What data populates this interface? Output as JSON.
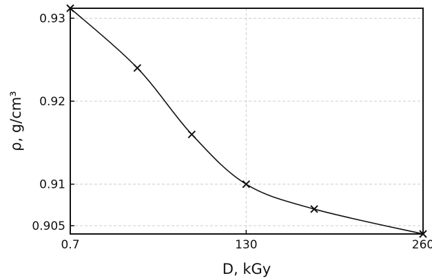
{
  "chart_data": {
    "type": "line",
    "title": "",
    "xlabel": "D, kGy",
    "ylabel": "ρ, g/cm³",
    "xlim": [
      0.7,
      260
    ],
    "ylim": [
      0.904,
      0.9312
    ],
    "x_ticks": [
      0.7,
      130,
      260
    ],
    "x_tick_labels": [
      "0.7",
      "130",
      "260"
    ],
    "y_ticks": [
      0.905,
      0.91,
      0.92,
      0.93
    ],
    "y_tick_labels": [
      "0.905",
      "0.91",
      "0.92",
      "0.93"
    ],
    "grid": true,
    "legend": "none",
    "marker": "x",
    "series": [
      {
        "x": [
          0.7,
          50,
          90,
          130,
          180,
          260
        ],
        "y": [
          0.9312,
          0.924,
          0.916,
          0.91,
          0.907,
          0.904
        ]
      }
    ]
  }
}
